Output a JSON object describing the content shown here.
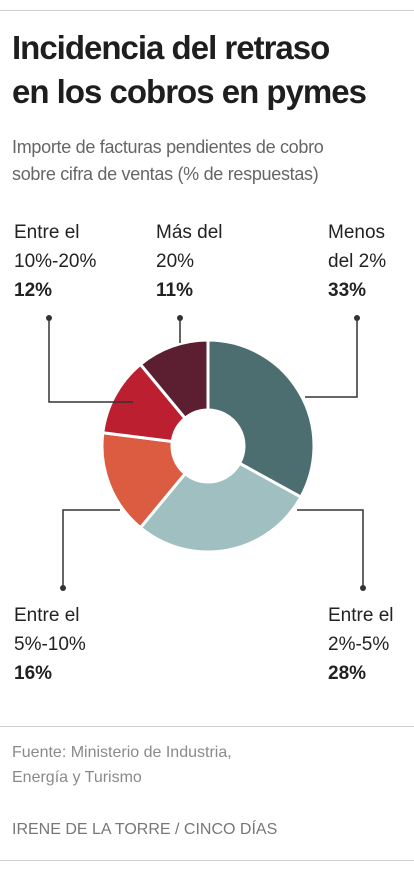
{
  "header": {
    "title_line1": "Incidencia del retraso",
    "title_line2": "en los cobros en pymes",
    "subtitle_line1": "Importe de facturas pendientes de cobro",
    "subtitle_line2": "sobre cifra de ventas (% de respuestas)"
  },
  "labels": {
    "entre10_20": {
      "line1": "Entre el",
      "line2": "10%-20%",
      "pct": "12%"
    },
    "mas20": {
      "line1": "Más del",
      "line2": "20%",
      "pct": "11%"
    },
    "menos2": {
      "line1": "Menos",
      "line2": "del 2%",
      "pct": "33%"
    },
    "entre5_10": {
      "line1": "Entre el",
      "line2": "5%-10%",
      "pct": "16%"
    },
    "entre2_5": {
      "line1": "Entre el",
      "line2": "2%-5%",
      "pct": "28%"
    }
  },
  "footer": {
    "source_line1": "Fuente: Ministerio de Industria,",
    "source_line2": "Energía y Turismo",
    "credit": "IRENE DE LA TORRE / CINCO DÍAS"
  },
  "chart_data": {
    "type": "pie",
    "donut": true,
    "categories": [
      "Menos del 2%",
      "Entre el 2%-5%",
      "Entre el 5%-10%",
      "Entre el 10%-20%",
      "Más del 20%"
    ],
    "values": [
      33,
      28,
      16,
      12,
      11
    ],
    "colors": [
      "#4c6e71",
      "#9fbfc0",
      "#db5c40",
      "#bb1f30",
      "#5b1f31"
    ],
    "legend": "none"
  }
}
